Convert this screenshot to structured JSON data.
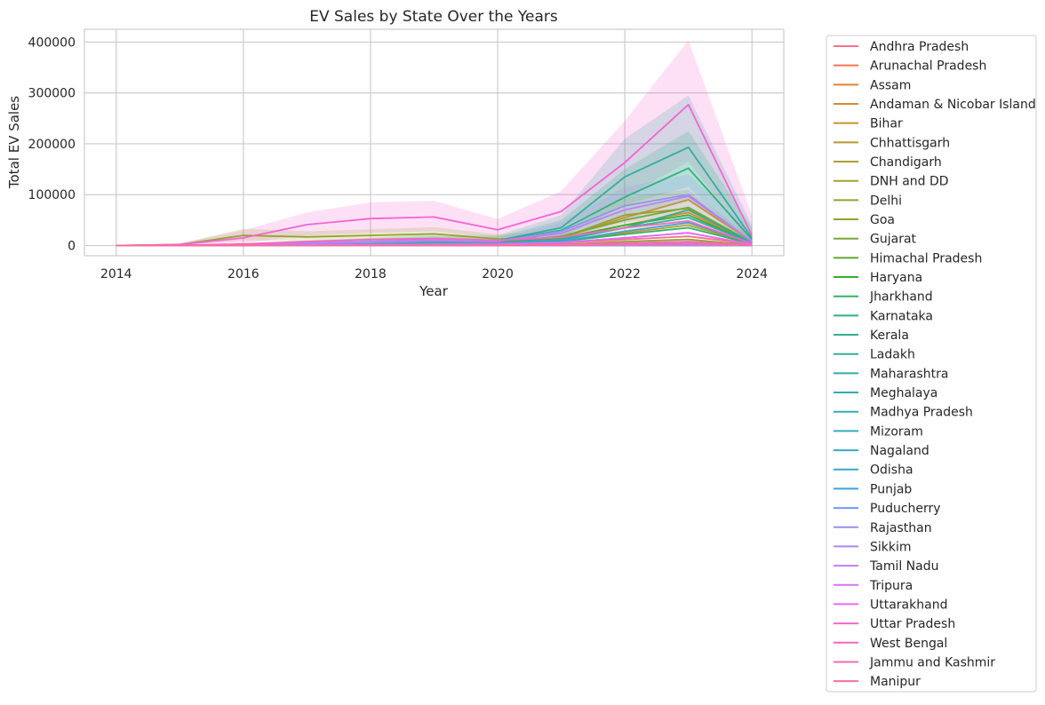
{
  "chart_data": {
    "type": "line",
    "title": "EV Sales by State Over the Years",
    "xlabel": "Year",
    "ylabel": "Total EV Sales",
    "x": [
      2014,
      2015,
      2016,
      2017,
      2018,
      2019,
      2020,
      2021,
      2022,
      2023,
      2024
    ],
    "xticks": [
      2014,
      2016,
      2018,
      2020,
      2022,
      2024
    ],
    "yticks": [
      0,
      100000,
      200000,
      300000,
      400000
    ],
    "xlim": [
      2013.5,
      2024.5
    ],
    "ylim": [
      -20000,
      425000
    ],
    "grid": true,
    "legend_position": "outside-right",
    "series": [
      {
        "name": "Andhra Pradesh",
        "color": "#f77189",
        "values": [
          0,
          50,
          100,
          500,
          800,
          1200,
          1500,
          5000,
          12000,
          18000,
          3000
        ]
      },
      {
        "name": "Arunachal Pradesh",
        "color": "#f7754f",
        "values": [
          0,
          0,
          0,
          0,
          10,
          20,
          30,
          60,
          120,
          180,
          20
        ]
      },
      {
        "name": "Assam",
        "color": "#e5812e",
        "values": [
          0,
          100,
          500,
          2000,
          4000,
          6000,
          8000,
          15000,
          40000,
          65000,
          5000
        ]
      },
      {
        "name": "Andaman & Nicobar Island",
        "color": "#d58b31",
        "values": [
          0,
          0,
          0,
          5,
          10,
          15,
          20,
          30,
          60,
          100,
          10
        ]
      },
      {
        "name": "Bihar",
        "color": "#c69432",
        "values": [
          0,
          200,
          1000,
          3000,
          6000,
          10000,
          9000,
          15000,
          55000,
          90000,
          8000
        ]
      },
      {
        "name": "Chhattisgarh",
        "color": "#b89a32",
        "values": [
          0,
          50,
          200,
          1000,
          2000,
          3000,
          3500,
          8000,
          25000,
          40000,
          4000
        ]
      },
      {
        "name": "Chandigarh",
        "color": "#ac9d32",
        "values": [
          0,
          0,
          50,
          200,
          500,
          800,
          900,
          2000,
          4000,
          6000,
          1000
        ]
      },
      {
        "name": "DNH and DD",
        "color": "#a2a032",
        "values": [
          0,
          0,
          0,
          50,
          100,
          200,
          200,
          500,
          1000,
          1500,
          200
        ]
      },
      {
        "name": "Delhi",
        "color": "#97a232",
        "values": [
          0,
          2000,
          20000,
          17000,
          20000,
          23000,
          13000,
          15000,
          60000,
          73000,
          5000
        ]
      },
      {
        "name": "Goa",
        "color": "#8aa532",
        "values": [
          0,
          0,
          50,
          200,
          400,
          600,
          700,
          2000,
          8000,
          12000,
          1000
        ]
      },
      {
        "name": "Gujarat",
        "color": "#78a832",
        "values": [
          0,
          100,
          500,
          1500,
          3000,
          5000,
          6000,
          18000,
          50000,
          75000,
          6000
        ]
      },
      {
        "name": "Himachal Pradesh",
        "color": "#5eab32",
        "values": [
          0,
          0,
          20,
          100,
          200,
          300,
          400,
          800,
          2000,
          3000,
          300
        ]
      },
      {
        "name": "Haryana",
        "color": "#32b132",
        "values": [
          0,
          200,
          1000,
          3000,
          6000,
          8000,
          7000,
          14000,
          40000,
          60000,
          5000
        ]
      },
      {
        "name": "Jharkhand",
        "color": "#32b164",
        "values": [
          0,
          100,
          300,
          1000,
          2000,
          3000,
          3500,
          8000,
          22000,
          35000,
          3000
        ]
      },
      {
        "name": "Karnataka",
        "color": "#33b07d",
        "values": [
          0,
          300,
          1500,
          4000,
          7000,
          10000,
          9000,
          30000,
          95000,
          152000,
          12000
        ]
      },
      {
        "name": "Kerala",
        "color": "#34ae8c",
        "values": [
          0,
          50,
          200,
          800,
          1500,
          2500,
          3000,
          10000,
          35000,
          70000,
          6000
        ]
      },
      {
        "name": "Ladakh",
        "color": "#35ad98",
        "values": [
          0,
          0,
          0,
          0,
          5,
          10,
          10,
          20,
          40,
          60,
          10
        ]
      },
      {
        "name": "Maharashtra",
        "color": "#35aca3",
        "values": [
          0,
          300,
          2000,
          5000,
          8000,
          12000,
          10000,
          35000,
          135000,
          193000,
          15000
        ]
      },
      {
        "name": "Meghalaya",
        "color": "#36abac",
        "values": [
          0,
          0,
          10,
          30,
          60,
          100,
          120,
          200,
          400,
          600,
          50
        ]
      },
      {
        "name": "Madhya Pradesh",
        "color": "#37aab5",
        "values": [
          0,
          100,
          500,
          1500,
          3000,
          5000,
          5500,
          12000,
          35000,
          55000,
          5000
        ]
      },
      {
        "name": "Mizoram",
        "color": "#38a9be",
        "values": [
          0,
          0,
          5,
          20,
          40,
          60,
          80,
          150,
          300,
          500,
          50
        ]
      },
      {
        "name": "Nagaland",
        "color": "#39a7c8",
        "values": [
          0,
          0,
          0,
          10,
          20,
          30,
          40,
          80,
          150,
          250,
          30
        ]
      },
      {
        "name": "Odisha",
        "color": "#3aa5d3",
        "values": [
          0,
          50,
          200,
          700,
          1500,
          2500,
          3000,
          8000,
          28000,
          45000,
          4000
        ]
      },
      {
        "name": "Punjab",
        "color": "#3ba3e0",
        "values": [
          0,
          50,
          200,
          800,
          1500,
          2500,
          2800,
          6000,
          15000,
          25000,
          2500
        ]
      },
      {
        "name": "Puducherry",
        "color": "#6e9bf4",
        "values": [
          0,
          0,
          20,
          100,
          200,
          300,
          300,
          700,
          1500,
          2500,
          300
        ]
      },
      {
        "name": "Rajasthan",
        "color": "#9491f4",
        "values": [
          0,
          200,
          1000,
          3000,
          6000,
          9000,
          8000,
          28000,
          78000,
          100000,
          8000
        ]
      },
      {
        "name": "Sikkim",
        "color": "#ad87f4",
        "values": [
          0,
          0,
          0,
          5,
          10,
          15,
          20,
          30,
          60,
          100,
          10
        ]
      },
      {
        "name": "Tamil Nadu",
        "color": "#c27ef4",
        "values": [
          0,
          300,
          2000,
          5000,
          8000,
          11000,
          9000,
          24000,
          70000,
          97000,
          8000
        ]
      },
      {
        "name": "Tripura",
        "color": "#d774f4",
        "values": [
          0,
          0,
          50,
          200,
          400,
          600,
          700,
          1500,
          4000,
          6000,
          500
        ]
      },
      {
        "name": "Uttarakhand",
        "color": "#ec69f4",
        "values": [
          0,
          50,
          200,
          800,
          1500,
          2500,
          3000,
          6000,
          15000,
          25000,
          2500
        ]
      },
      {
        "name": "Uttar Pradesh",
        "color": "#f564d3",
        "values": [
          0,
          2000,
          15000,
          41000,
          53000,
          56000,
          31000,
          67000,
          163000,
          277000,
          20000
        ]
      },
      {
        "name": "West Bengal",
        "color": "#f568c0",
        "values": [
          0,
          500,
          3000,
          8000,
          12000,
          14000,
          10000,
          16000,
          35000,
          48000,
          4000
        ]
      },
      {
        "name": "Jammu and Kashmir",
        "color": "#f66baf",
        "values": [
          0,
          20,
          100,
          300,
          600,
          900,
          1000,
          2000,
          5000,
          8000,
          800
        ]
      },
      {
        "name": "Manipur",
        "color": "#f76e9d",
        "values": [
          0,
          0,
          20,
          100,
          200,
          300,
          400,
          800,
          1800,
          3000,
          300
        ]
      }
    ],
    "ci_bands": [
      {
        "series": "Uttar Pradesh",
        "color": "#f564d3",
        "lower": [
          0,
          500,
          5000,
          20000,
          25000,
          28000,
          15000,
          35000,
          95000,
          165000,
          0
        ],
        "upper": [
          0,
          4500,
          30000,
          65000,
          85000,
          88000,
          52000,
          107000,
          245000,
          403000,
          60000
        ]
      },
      {
        "series": "Maharashtra",
        "color": "#35aca3",
        "lower": [
          0,
          0,
          500,
          1000,
          2000,
          3000,
          3000,
          15000,
          80000,
          115000,
          0
        ],
        "upper": [
          0,
          1000,
          4000,
          10000,
          15000,
          22000,
          20000,
          60000,
          210000,
          295000,
          40000
        ]
      },
      {
        "series": "Karnataka",
        "color": "#33b07d",
        "lower": [
          0,
          0,
          300,
          1000,
          2000,
          3000,
          2500,
          12000,
          50000,
          90000,
          0
        ],
        "upper": [
          0,
          800,
          3500,
          8000,
          13000,
          18000,
          17000,
          50000,
          150000,
          225000,
          35000
        ]
      },
      {
        "series": "Delhi",
        "color": "#97a232",
        "lower": [
          0,
          500,
          10000,
          8000,
          10000,
          12000,
          6000,
          6000,
          30000,
          40000,
          0
        ],
        "upper": [
          0,
          4000,
          33000,
          28000,
          32000,
          36000,
          22000,
          26000,
          95000,
          110000,
          15000
        ]
      },
      {
        "series": "Rajasthan",
        "color": "#9491f4",
        "lower": [
          0,
          0,
          300,
          1000,
          2000,
          3000,
          3000,
          12000,
          45000,
          62000,
          0
        ],
        "upper": [
          0,
          500,
          2000,
          6000,
          11000,
          16000,
          14000,
          45000,
          115000,
          140000,
          25000
        ]
      }
    ]
  }
}
